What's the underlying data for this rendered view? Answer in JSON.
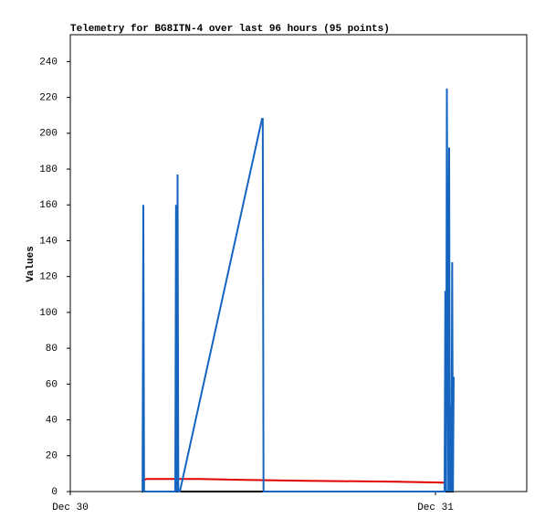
{
  "chart_data": {
    "type": "line",
    "title": "Telemetry for BG8ITN-4 over last 96 hours (95 points)",
    "ylabel": "Values",
    "xlim": [
      0,
      30
    ],
    "xticks": [
      {
        "value": 0,
        "label": "Dec 30"
      },
      {
        "value": 24,
        "label": "Dec 31"
      }
    ],
    "ylim": [
      0,
      255
    ],
    "yticks": [
      0,
      20,
      40,
      60,
      80,
      100,
      120,
      140,
      160,
      180,
      200,
      220,
      240
    ],
    "grid": false,
    "series": [
      {
        "color": "#e00000",
        "x": [
          4.7,
          5.0,
          8.5,
          11.5,
          15.5,
          21.5,
          24.6
        ],
        "values": [
          6,
          7,
          7,
          6.5,
          6,
          5.5,
          5
        ]
      },
      {
        "color": "#000000",
        "x": [
          4.7,
          25.2
        ],
        "values": [
          0,
          0
        ]
      },
      {
        "color": "#1565c0",
        "x": [
          4.75,
          4.8,
          4.85,
          6.9,
          6.95,
          7.0,
          7.05,
          7.1,
          7.2,
          12.6,
          12.65,
          12.7,
          24.6,
          24.65,
          24.7,
          24.75,
          24.85,
          24.9,
          24.95,
          25.0,
          25.05,
          25.1,
          25.15,
          25.2
        ],
        "values": [
          0,
          160,
          0,
          0,
          160,
          0,
          177,
          0,
          0,
          208,
          208,
          0,
          0,
          112,
          0,
          225,
          0,
          192,
          0,
          48,
          0,
          128,
          0,
          64
        ]
      }
    ]
  }
}
